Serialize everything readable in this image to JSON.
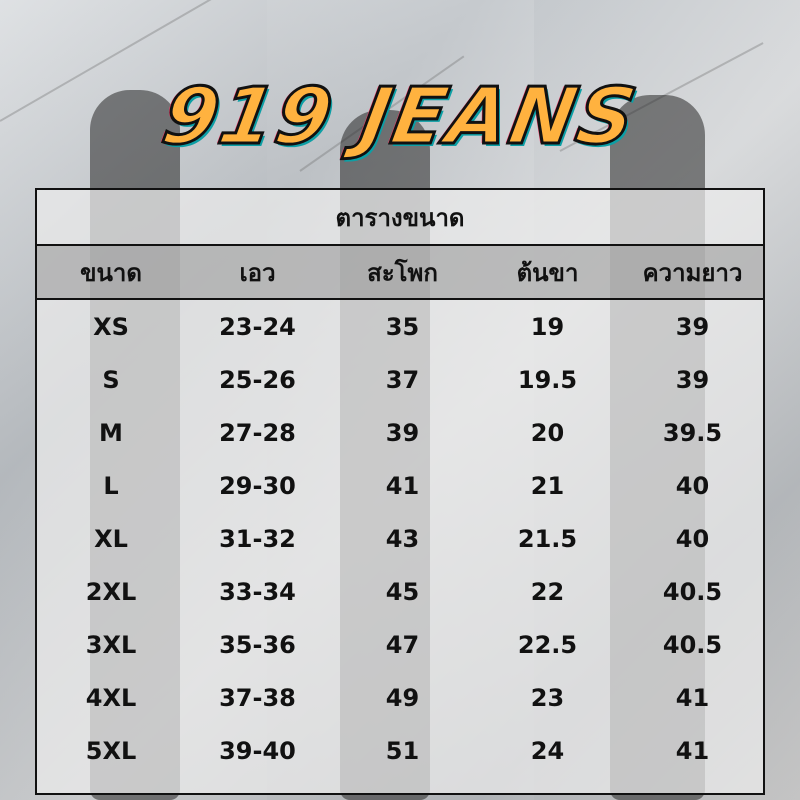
{
  "brand": "919 JEANS",
  "size_chart": {
    "title": "ตารางขนาด",
    "headers": [
      "ขนาด",
      "เอว",
      "สะโพก",
      "ต้นขา",
      "ความยาว"
    ],
    "rows": [
      [
        "XS",
        "23-24",
        "35",
        "19",
        "39"
      ],
      [
        "S",
        "25-26",
        "37",
        "19.5",
        "39"
      ],
      [
        "M",
        "27-28",
        "39",
        "20",
        "39.5"
      ],
      [
        "L",
        "29-30",
        "41",
        "21",
        "40"
      ],
      [
        "XL",
        "31-32",
        "43",
        "21.5",
        "40"
      ],
      [
        "2XL",
        "33-34",
        "45",
        "22",
        "40.5"
      ],
      [
        "3XL",
        "35-36",
        "47",
        "22.5",
        "40.5"
      ],
      [
        "4XL",
        "37-38",
        "49",
        "23",
        "41"
      ],
      [
        "5XL",
        "39-40",
        "51",
        "24",
        "41"
      ]
    ]
  },
  "colors": {
    "logo": "#ffb23f",
    "logo_outline": "#111111",
    "logo_shadow": "#0d9fa5"
  }
}
